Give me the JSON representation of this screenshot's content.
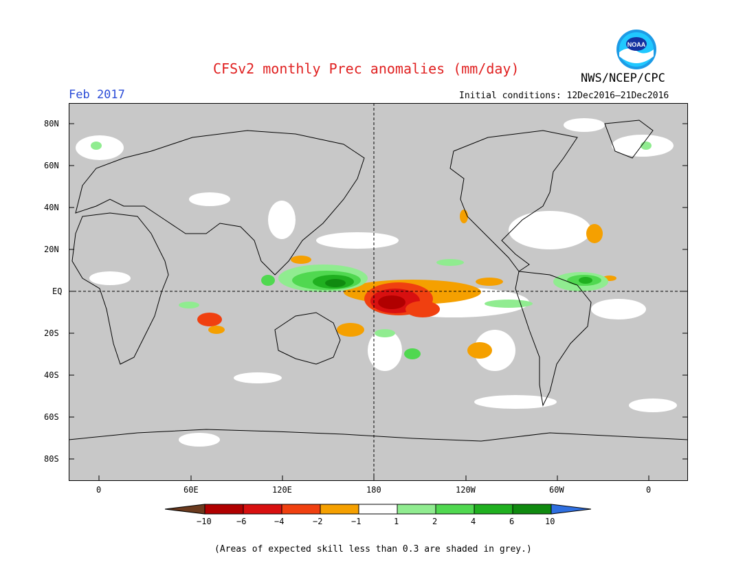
{
  "title": "CFSv2 monthly Prec anomalies (mm/day)",
  "agency": "NWS/NCEP/CPC",
  "logo_text": "NOAA",
  "valid_month": "Feb 2017",
  "initial_conditions": "Initial conditions: 12Dec2016–21Dec2016",
  "lat_labels": [
    "80N",
    "60N",
    "40N",
    "20N",
    "EQ",
    "20S",
    "40S",
    "60S",
    "80S"
  ],
  "lon_labels": [
    "0",
    "60E",
    "120E",
    "180",
    "120W",
    "60W",
    "0"
  ],
  "colorbar": {
    "labels": [
      "−10",
      "−6",
      "−4",
      "−2",
      "−1",
      "1",
      "2",
      "4",
      "6",
      "10"
    ],
    "colors": [
      "#6b3a1e",
      "#b00000",
      "#d81010",
      "#f04010",
      "#f5a000",
      "#ffffff",
      "#90ec90",
      "#50d850",
      "#20b020",
      "#108a10",
      "#2f6fe0"
    ]
  },
  "footnote": "(Areas of expected skill less than 0.3 are shaded in grey.)",
  "colors": {
    "grey": "#c8c8c8",
    "title_red": "#e02020",
    "month_blue": "#2a4bd7"
  }
}
